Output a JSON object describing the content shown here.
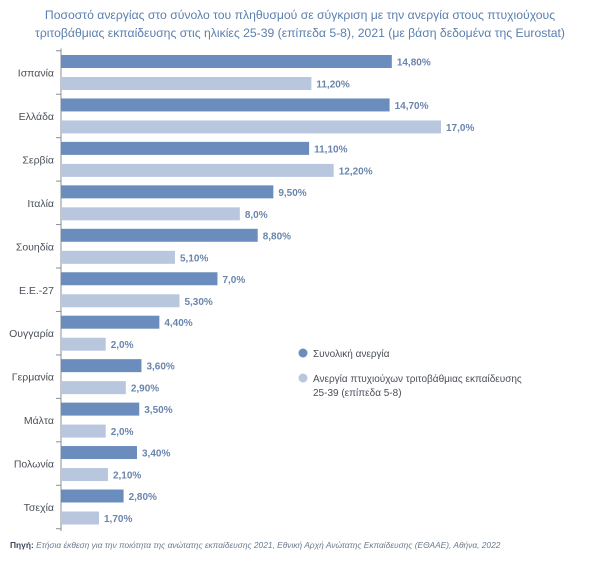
{
  "chart_data": {
    "type": "bar",
    "orientation": "horizontal",
    "title_line1": "Ποσοστό ανεργίας στο σύνολο του πληθυσμού σε σύγκριση με την ανεργία στους πτυχιούχους",
    "title_line2": "τριτοβάθμιας εκπαίδευσης στις ηλικίες 25-39 (επίπεδα 5-8), 2021 (με βάση δεδομένα της Eurostat)",
    "categories": [
      "Ισπανία",
      "Ελλάδα",
      "Σερβία",
      "Ιταλία",
      "Σουηδία",
      "Ε.Ε.-27",
      "Ουγγαρία",
      "Γερμανία",
      "Μάλτα",
      "Πολωνία",
      "Τσεχία"
    ],
    "series": [
      {
        "name": "Συνολική ανεργία",
        "color": "#6b8dbd",
        "values": [
          14.8,
          14.7,
          11.1,
          9.5,
          8.8,
          7.0,
          4.4,
          3.6,
          3.5,
          3.4,
          2.8
        ],
        "labels": [
          "14,80%",
          "14,70%",
          "11,10%",
          "9,50%",
          "8,80%",
          "7,0%",
          "4,40%",
          "3,60%",
          "3,50%",
          "3,40%",
          "2,80%"
        ]
      },
      {
        "name": "Ανεργία πτυχιούχων τριτοβάθμιας εκπαίδευσης 25-39 (επίπεδα 5-8)",
        "legend_line1": "Ανεργία πτυχιούχων τριτοβάθμιας εκπαίδευσης",
        "legend_line2": "25-39 (επίπεδα 5-8)",
        "color": "#b8c7de",
        "values": [
          11.2,
          17.0,
          12.2,
          8.0,
          5.1,
          5.3,
          2.0,
          2.9,
          2.0,
          2.1,
          1.7
        ],
        "labels": [
          "11,20%",
          "17,0%",
          "12,20%",
          "8,0%",
          "5,10%",
          "5,30%",
          "2,0%",
          "2,90%",
          "2,0%",
          "2,10%",
          "1,70%"
        ]
      }
    ],
    "xlim": [
      0,
      17
    ],
    "grid": false,
    "legend_position": "center-right"
  },
  "source": {
    "label": "Πηγή:",
    "text": "Ετήσια έκθεση για την ποιότητα της ανώτατης εκπαίδευσης 2021, Εθνική Αρχή Ανώτατης Εκπαίδευσης (ΕΘΑΑΕ), Αθήνα, 2022"
  }
}
